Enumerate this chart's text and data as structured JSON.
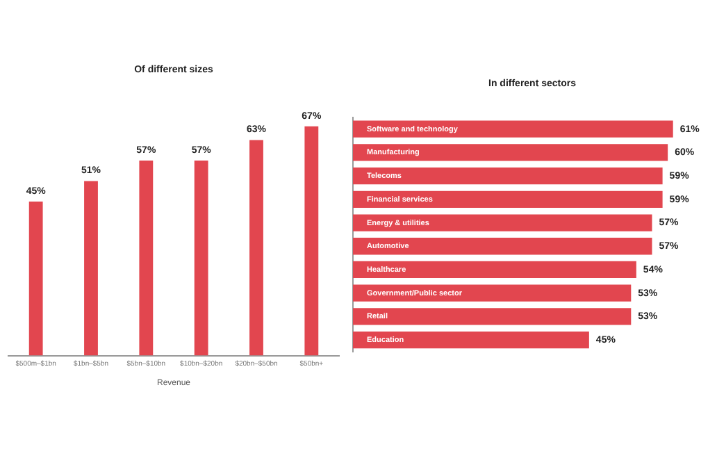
{
  "chart_data": [
    {
      "type": "bar",
      "title": "Of different sizes",
      "xlabel": "Revenue",
      "categories": [
        "$500m–$1bn",
        "$1bn–$5bn",
        "$5bn–$10bn",
        "$10bn–$20bn",
        "$20bn–$50bn",
        "$50bn+"
      ],
      "values": [
        45,
        51,
        57,
        57,
        63,
        67
      ],
      "value_labels": [
        "45%",
        "51%",
        "57%",
        "57%",
        "63%",
        "67%"
      ],
      "color": "#e2464f",
      "legend": false
    },
    {
      "type": "bar",
      "orientation": "horizontal",
      "title": "In different sectors",
      "categories": [
        "Software and technology",
        "Manufacturing",
        "Telecoms",
        "Financial services",
        "Energy & utilities",
        "Automotive",
        "Healthcare",
        "Government/Public sector",
        "Retail",
        "Education"
      ],
      "values": [
        61,
        60,
        59,
        59,
        57,
        57,
        54,
        53,
        53,
        45
      ],
      "value_labels": [
        "61%",
        "60%",
        "59%",
        "59%",
        "57%",
        "57%",
        "54%",
        "53%",
        "53%",
        "45%"
      ],
      "color": "#e2464f",
      "legend": false
    }
  ]
}
